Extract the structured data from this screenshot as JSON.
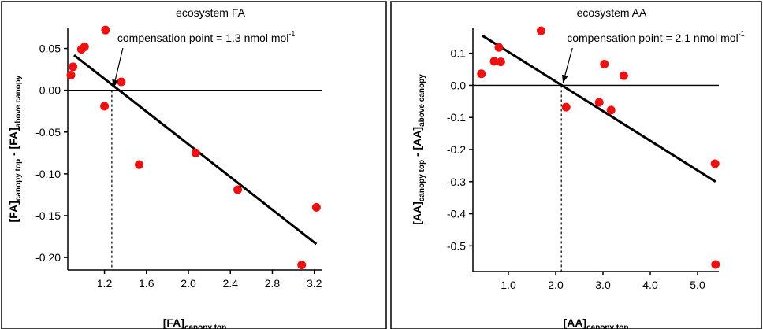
{
  "chart_data": [
    {
      "type": "scatter",
      "title": "ecosystem FA",
      "annotation": {
        "text": "compensation point = 1.3 nmol mol",
        "superscript": "-1",
        "x": 1.27
      },
      "xlabel": {
        "main": "[FA]",
        "sub": "canopy top"
      },
      "ylabel": {
        "a": "[FA]",
        "a_sub": "canopy top",
        "sep": " - ",
        "b": "[FA]",
        "b_sub": "above canopy"
      },
      "xlim": [
        0.85,
        3.27
      ],
      "ylim": [
        -0.215,
        0.075
      ],
      "xticks": [
        1.2,
        1.6,
        2.0,
        2.4,
        2.8,
        3.2
      ],
      "xtick_labels": [
        "1.2",
        "1.6",
        "2.0",
        "2.4",
        "2.8",
        "3.2"
      ],
      "yticks": [
        0.05,
        0.0,
        -0.05,
        -0.1,
        -0.15,
        -0.2
      ],
      "ytick_labels": [
        "0.05",
        "0.00",
        "-0.05",
        "-0.10",
        "-0.15",
        "-0.20"
      ],
      "fit_line": {
        "x": [
          0.91,
          3.22
        ],
        "y": [
          0.042,
          -0.184
        ]
      },
      "points": [
        {
          "x": 0.88,
          "y": 0.018
        },
        {
          "x": 0.9,
          "y": 0.028
        },
        {
          "x": 0.98,
          "y": 0.049
        },
        {
          "x": 1.01,
          "y": 0.052
        },
        {
          "x": 1.21,
          "y": 0.072
        },
        {
          "x": 1.2,
          "y": -0.019
        },
        {
          "x": 1.36,
          "y": 0.01
        },
        {
          "x": 1.53,
          "y": -0.089
        },
        {
          "x": 2.07,
          "y": -0.075
        },
        {
          "x": 2.47,
          "y": -0.119
        },
        {
          "x": 3.08,
          "y": -0.209
        },
        {
          "x": 3.22,
          "y": -0.14
        }
      ],
      "marker_color": "#ee1111"
    },
    {
      "type": "scatter",
      "title": "ecosystem AA",
      "annotation": {
        "text": "compensation point = 2.1 nmol mol",
        "superscript": "-1",
        "x": 2.12
      },
      "xlabel": {
        "main": "[AA]",
        "sub": "canopy top"
      },
      "ylabel": {
        "a": "[AA]",
        "a_sub": "canopy top",
        "sep": " - ",
        "b": "[AA]",
        "b_sub": "above canopy"
      },
      "xlim": [
        0.25,
        5.45
      ],
      "ylim": [
        -0.58,
        0.18
      ],
      "xticks": [
        1.0,
        2.0,
        3.0,
        4.0,
        5.0
      ],
      "xtick_labels": [
        "1.0",
        "2.0",
        "3.0",
        "4.0",
        "5.0"
      ],
      "yticks": [
        0.1,
        0.0,
        -0.1,
        -0.2,
        -0.3,
        -0.4,
        -0.5
      ],
      "ytick_labels": [
        "0.1",
        "0.0",
        "-0.1",
        "-0.2",
        "-0.3",
        "-0.4",
        "-0.5"
      ],
      "fit_line": {
        "x": [
          0.45,
          5.38
        ],
        "y": [
          0.155,
          -0.3
        ]
      },
      "points": [
        {
          "x": 0.43,
          "y": 0.036
        },
        {
          "x": 0.7,
          "y": 0.075
        },
        {
          "x": 0.8,
          "y": 0.118
        },
        {
          "x": 0.84,
          "y": 0.073
        },
        {
          "x": 1.69,
          "y": 0.17
        },
        {
          "x": 2.22,
          "y": -0.068
        },
        {
          "x": 2.92,
          "y": -0.053
        },
        {
          "x": 3.03,
          "y": 0.066
        },
        {
          "x": 3.17,
          "y": -0.077
        },
        {
          "x": 3.44,
          "y": 0.03
        },
        {
          "x": 5.37,
          "y": -0.244
        },
        {
          "x": 5.38,
          "y": -0.558
        }
      ],
      "marker_color": "#ee1111"
    }
  ]
}
